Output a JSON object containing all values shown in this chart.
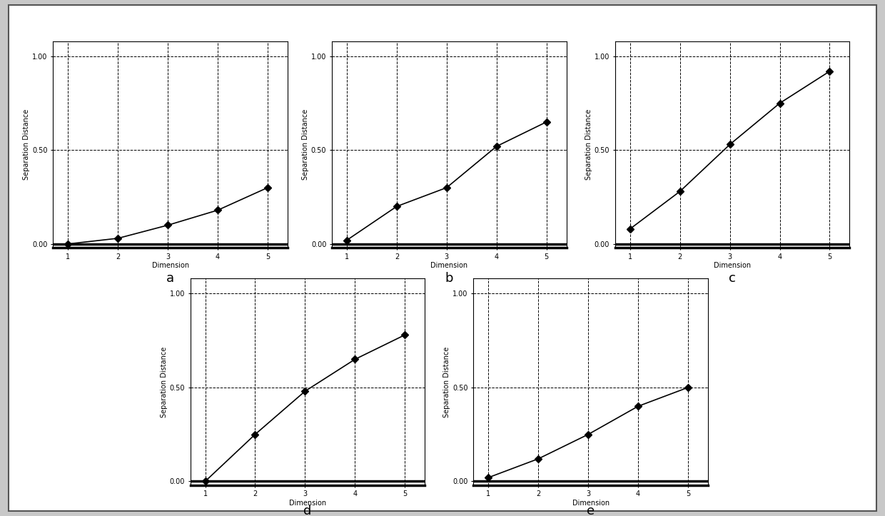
{
  "subplots": [
    {
      "label": "a",
      "x": [
        1,
        2,
        3,
        4,
        5
      ],
      "y": [
        0.0,
        0.03,
        0.1,
        0.18,
        0.3
      ]
    },
    {
      "label": "b",
      "x": [
        1,
        2,
        3,
        4,
        5
      ],
      "y": [
        0.02,
        0.2,
        0.3,
        0.52,
        0.65
      ]
    },
    {
      "label": "c",
      "x": [
        1,
        2,
        3,
        4,
        5
      ],
      "y": [
        0.08,
        0.28,
        0.53,
        0.75,
        0.92
      ]
    },
    {
      "label": "d",
      "x": [
        1,
        2,
        3,
        4,
        5
      ],
      "y": [
        0.0,
        0.25,
        0.48,
        0.65,
        0.78
      ]
    },
    {
      "label": "e",
      "x": [
        1,
        2,
        3,
        4,
        5
      ],
      "y": [
        0.02,
        0.12,
        0.25,
        0.4,
        0.5
      ]
    }
  ],
  "xlabel": "Dimension",
  "ylabel": "Separation Distance",
  "xlim": [
    0.7,
    5.4
  ],
  "ylim": [
    -0.02,
    1.08
  ],
  "yticks": [
    0.0,
    0.5,
    1.0
  ],
  "xticks": [
    1,
    2,
    3,
    4,
    5
  ],
  "line_color": "#000000",
  "marker": "D",
  "marker_size": 5,
  "line_width": 1.2,
  "background_color": "#ffffff",
  "outer_bg": "#c8c8c8",
  "label_fontsize": 13,
  "tick_fontsize": 7,
  "axis_label_fontsize": 7
}
